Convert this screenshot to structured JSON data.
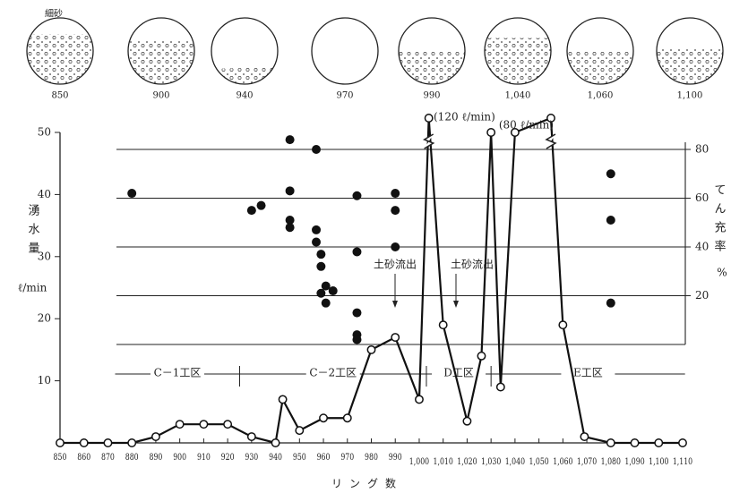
{
  "sections_diagram": {
    "note": "細砂",
    "labels": [
      "850",
      "900",
      "940",
      "970",
      "990",
      "1,040",
      "1,060",
      "1,100"
    ]
  },
  "chart_data": {
    "type": "line",
    "y_label": "湧水量",
    "y_unit": "ℓ/min",
    "y2_label": "てん充率",
    "y2_unit": "%",
    "x_label": "リング数",
    "xlim": [
      850,
      1110
    ],
    "xticks": [
      850,
      860,
      870,
      880,
      890,
      900,
      910,
      920,
      930,
      940,
      950,
      960,
      970,
      980,
      990,
      {
        "value": 1000,
        "label": "1,000"
      },
      {
        "value": 1010,
        "label": "1,010"
      },
      {
        "value": 1020,
        "label": "1,020"
      },
      {
        "value": 1030,
        "label": "1,030"
      },
      {
        "value": 1040,
        "label": "1,040"
      },
      {
        "value": 1050,
        "label": "1,050"
      },
      {
        "value": 1060,
        "label": "1,060"
      },
      {
        "value": 1070,
        "label": "1,070"
      },
      {
        "value": 1080,
        "label": "1,080"
      },
      {
        "value": 1090,
        "label": "1,090"
      },
      {
        "value": 1100,
        "label": "1,100"
      },
      {
        "value": 1110,
        "label": "1,110"
      }
    ],
    "ylim": [
      0,
      50
    ],
    "yticks": [
      10,
      20,
      30,
      40,
      50
    ],
    "y2lim": [
      0,
      80
    ],
    "y2ticks": [
      20,
      40,
      60,
      80
    ],
    "series": [
      {
        "color": "#111",
        "x": [
          850,
          860,
          870,
          880,
          890,
          900,
          910,
          920,
          930,
          940,
          943,
          950,
          960,
          970,
          980,
          990,
          1000,
          1004,
          1010,
          1020,
          1026,
          1030,
          1034,
          1040,
          1055,
          1060,
          1069,
          1080,
          1090,
          1100,
          1110
        ],
        "values": [
          0,
          0,
          0,
          0,
          1,
          3,
          3,
          3,
          1,
          0,
          7,
          2,
          4,
          4,
          15,
          17,
          7,
          120,
          19,
          3.5,
          14,
          50,
          9,
          50,
          80,
          19,
          1,
          0,
          0,
          0,
          0
        ]
      },
      {
        "type": "scatter",
        "axis": "y2",
        "color": "#111",
        "x": [
          880,
          930,
          934,
          946,
          946,
          946,
          946,
          957,
          957,
          957,
          959,
          959,
          959,
          961,
          961,
          964,
          974,
          974,
          974,
          974,
          974,
          990,
          990,
          990,
          1080,
          1080,
          1080
        ],
        "values": [
          62,
          55,
          57,
          84,
          63,
          51,
          48,
          80,
          47,
          42,
          37,
          32,
          21,
          24,
          17,
          22,
          61,
          38,
          13,
          4,
          2,
          62,
          55,
          40,
          70,
          51,
          17
        ]
      }
    ],
    "zones": [
      "C－1工区",
      "C－2工区",
      "D工区",
      "E工区"
    ],
    "zone_bounds": [
      873,
      925,
      1003,
      1030,
      1111
    ],
    "annotations": [
      "(120 ℓ/min)",
      "(80 ℓ/min)",
      "土砂流出",
      "土砂流出"
    ]
  }
}
